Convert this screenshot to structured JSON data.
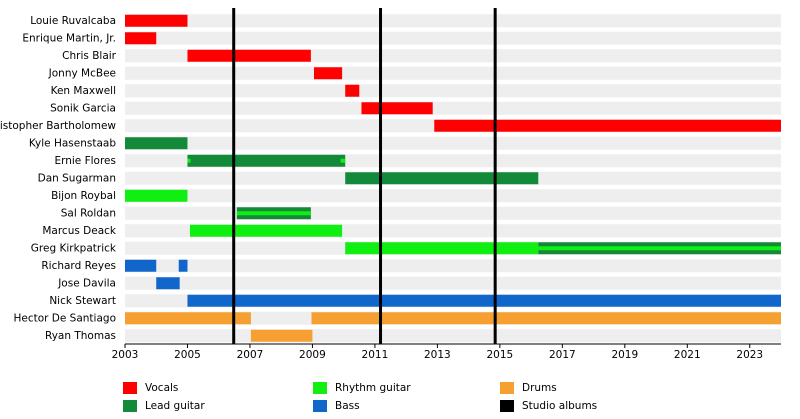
{
  "chart_data": {
    "type": "timeline",
    "roles": [
      {
        "name": "Vocals",
        "color": "#ff0000"
      },
      {
        "name": "Lead guitar",
        "color": "#138a39"
      },
      {
        "name": "Rhythm guitar",
        "color": "#11ee11"
      },
      {
        "name": "Bass",
        "color": "#1166cc"
      },
      {
        "name": "Drums",
        "color": "#f5a030"
      }
    ],
    "albums": {
      "name": "Studio albums",
      "color": "#000000",
      "x": [
        2006.48,
        2011.18,
        2014.85
      ]
    },
    "members": [
      {
        "name": "Louie Ruvalcaba",
        "spans": [
          {
            "role": "Vocals",
            "start": 2003,
            "end": 2005
          }
        ]
      },
      {
        "name": "Enrique Martin, Jr.",
        "spans": [
          {
            "role": "Vocals",
            "start": 2003,
            "end": 2004
          }
        ]
      },
      {
        "name": "Chris Blair",
        "spans": [
          {
            "role": "Vocals",
            "start": 2005,
            "end": 2008.95
          }
        ]
      },
      {
        "name": "Jonny McBee",
        "spans": [
          {
            "role": "Vocals",
            "start": 2009.05,
            "end": 2009.95
          }
        ]
      },
      {
        "name": "Ken Maxwell",
        "spans": [
          {
            "role": "Vocals",
            "start": 2010.05,
            "end": 2010.5
          }
        ]
      },
      {
        "name": "Sonik Garcia",
        "spans": [
          {
            "role": "Vocals",
            "start": 2010.57,
            "end": 2012.85
          }
        ]
      },
      {
        "name": "Christopher Bartholomew",
        "spans": [
          {
            "role": "Vocals",
            "start": 2012.9,
            "end": 2024
          }
        ]
      },
      {
        "name": "Kyle Hasenstaab",
        "spans": [
          {
            "role": "Lead guitar",
            "start": 2003,
            "end": 2005
          }
        ]
      },
      {
        "name": "Ernie Flores",
        "spans": [
          {
            "role": "Lead guitar",
            "start": 2005,
            "end": 2010.05
          },
          {
            "role": "Rhythm guitar",
            "start": 2005,
            "end": 2005.1,
            "stripe": true
          },
          {
            "role": "Rhythm guitar",
            "start": 2009.9,
            "end": 2010.05,
            "stripe": true
          }
        ]
      },
      {
        "name": "Dan Sugarman",
        "spans": [
          {
            "role": "Lead guitar",
            "start": 2010.05,
            "end": 2016.23
          }
        ]
      },
      {
        "name": "Bijon Roybal",
        "spans": [
          {
            "role": "Rhythm guitar",
            "start": 2003,
            "end": 2005
          }
        ]
      },
      {
        "name": "Sal Roldan",
        "spans": [
          {
            "role": "Lead guitar",
            "start": 2006.58,
            "end": 2008.95
          },
          {
            "role": "Rhythm guitar",
            "start": 2006.58,
            "end": 2008.95,
            "stripe": true
          }
        ]
      },
      {
        "name": "Marcus Deack",
        "spans": [
          {
            "role": "Rhythm guitar",
            "start": 2005.08,
            "end": 2009.95
          }
        ]
      },
      {
        "name": "Greg Kirkpatrick",
        "spans": [
          {
            "role": "Rhythm guitar",
            "start": 2010.05,
            "end": 2016.23
          },
          {
            "role": "Lead guitar",
            "start": 2016.23,
            "end": 2024
          },
          {
            "role": "Rhythm guitar",
            "start": 2016.23,
            "end": 2024,
            "stripe": true
          }
        ]
      },
      {
        "name": "Richard Reyes",
        "spans": [
          {
            "role": "Bass",
            "start": 2003,
            "end": 2004
          },
          {
            "role": "Bass",
            "start": 2004.72,
            "end": 2005
          }
        ]
      },
      {
        "name": "Jose Davila",
        "spans": [
          {
            "role": "Bass",
            "start": 2004,
            "end": 2004.75
          }
        ]
      },
      {
        "name": "Nick Stewart",
        "spans": [
          {
            "role": "Bass",
            "start": 2005,
            "end": 2024
          }
        ]
      },
      {
        "name": "Hector De Santiago",
        "spans": [
          {
            "role": "Drums",
            "start": 2003,
            "end": 2007.03
          },
          {
            "role": "Drums",
            "start": 2008.97,
            "end": 2024
          }
        ]
      },
      {
        "name": "Ryan Thomas",
        "spans": [
          {
            "role": "Drums",
            "start": 2007.03,
            "end": 2009
          }
        ]
      }
    ],
    "xlim": [
      2003,
      2024
    ],
    "xticks": [
      2003,
      2005,
      2007,
      2009,
      2011,
      2013,
      2015,
      2017,
      2019,
      2021,
      2023
    ]
  }
}
